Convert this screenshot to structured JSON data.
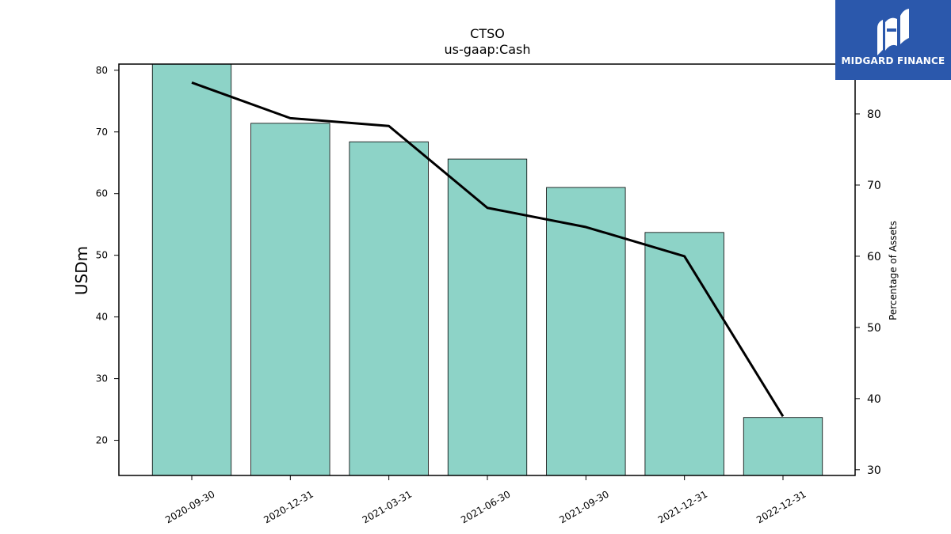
{
  "chart_data": {
    "type": "bar",
    "title": "CTSO",
    "subtitle": "us-gaap:Cash",
    "ylabel": "USDm",
    "y2label": "Percentage of Assets",
    "categories": [
      "2020-09-30",
      "2020-12-31",
      "2021-03-31",
      "2021-06-30",
      "2021-09-30",
      "2021-12-31",
      "2022-12-31"
    ],
    "series": [
      {
        "type": "bar",
        "values": [
          81.0,
          71.4,
          68.4,
          65.6,
          61.0,
          53.7,
          23.7
        ],
        "axis": "left"
      },
      {
        "type": "line",
        "values": [
          84.4,
          79.4,
          78.3,
          66.8,
          64.1,
          60.0,
          37.5
        ],
        "axis": "right"
      }
    ],
    "ylim": [
      14.3,
      81.0
    ],
    "y_ticks": [
      20,
      30,
      40,
      50,
      60,
      70,
      80
    ],
    "y2lim": [
      29.2,
      87.0
    ],
    "y2_ticks": [
      30,
      40,
      50,
      60,
      70,
      80
    ],
    "grid": false,
    "colors": {
      "bar": "#8dd3c7",
      "bar_edge": "#000000",
      "line": "#000000"
    }
  },
  "logo": {
    "text": "MIDGARD FINANCE",
    "background": "#2b58ac"
  }
}
